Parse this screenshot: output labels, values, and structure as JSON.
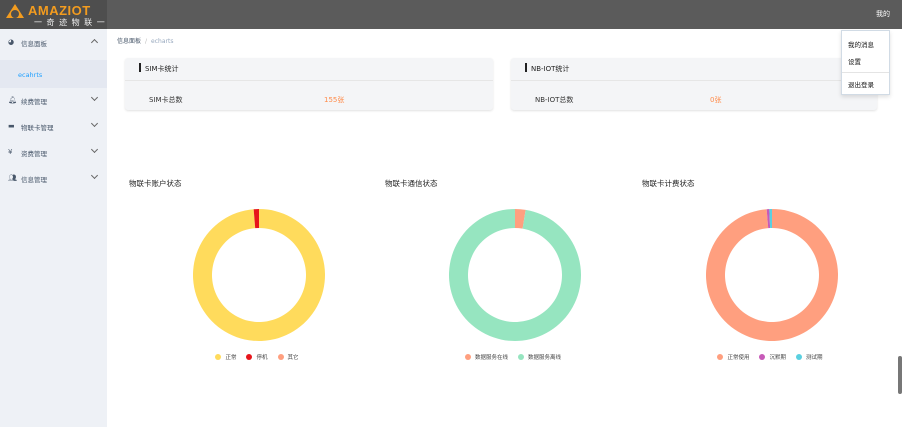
{
  "header": {
    "logo_text": "AMAZIOT",
    "logo_sub": "一 奇 迹 物 联 一",
    "user_menu_label": "我的"
  },
  "sidebar": {
    "items": [
      {
        "label": "信息面板",
        "icon": "dashboard-icon",
        "expanded": true
      },
      {
        "label": "续费管理",
        "icon": "bell-icon",
        "expanded": false
      },
      {
        "label": "物联卡管理",
        "icon": "card-icon",
        "expanded": false
      },
      {
        "label": "资费管理",
        "icon": "yen-icon",
        "expanded": false
      },
      {
        "label": "信息管理",
        "icon": "users-icon",
        "expanded": false
      }
    ],
    "active_sub": "ecahrts"
  },
  "breadcrumb": {
    "parent": "信息面板",
    "sep": "/",
    "current": "echarts"
  },
  "cards": {
    "sim": {
      "title": "SIM卡统计",
      "key": "SIM卡总数",
      "value": "155张"
    },
    "nb": {
      "title": "NB-IOT统计",
      "key": "NB-IOT总数",
      "value": "0张"
    }
  },
  "dropdown": {
    "items": [
      "我的消息",
      "设置",
      "退出登录"
    ]
  },
  "colors": {
    "accent": "#20a0ff",
    "value": "#ff8b4a",
    "yellow": "#ffdb5c",
    "red": "#e7151b",
    "salmon": "#ff9f7f",
    "green": "#96e5c0",
    "purple": "#c75ab8",
    "cyan": "#5ad0e0"
  },
  "chart_data": [
    {
      "type": "pie",
      "title": "物联卡账户状态",
      "categories": [
        "正常",
        "停机",
        "其它"
      ],
      "values": [
        153,
        2,
        0
      ],
      "colors": [
        "#ffdb5c",
        "#e7151b",
        "#ff9f7f"
      ],
      "donut": true,
      "legend": "bottom"
    },
    {
      "type": "pie",
      "title": "物联卡通信状态",
      "categories": [
        "数据服务在线",
        "数据服务离线"
      ],
      "values": [
        4,
        151
      ],
      "colors": [
        "#ff9f7f",
        "#96e5c0"
      ],
      "donut": true,
      "legend": "bottom"
    },
    {
      "type": "pie",
      "title": "物联卡计费状态",
      "categories": [
        "正常使用",
        "沉默期",
        "测试期"
      ],
      "values": [
        153,
        1,
        1
      ],
      "colors": [
        "#ff9f7f",
        "#c75ab8",
        "#5ad0e0"
      ],
      "donut": true,
      "legend": "bottom"
    }
  ]
}
